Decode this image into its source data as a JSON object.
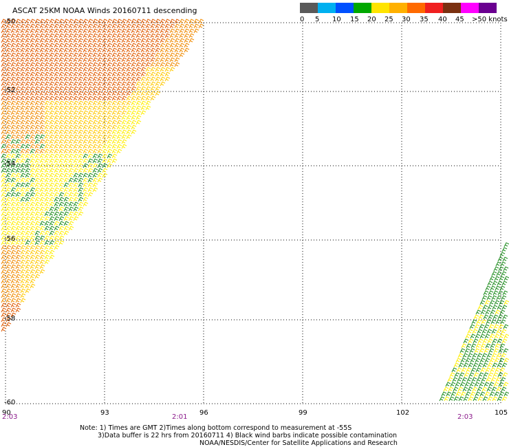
{
  "title": "ASCAT 25KM NOAA Winds 20160711 descending",
  "colorbar": {
    "colors": [
      "#5a5a5a",
      "#00b0f0",
      "#0050ff",
      "#00a800",
      "#ffe400",
      "#ffb000",
      "#ff6a00",
      "#f02020",
      "#7a3010",
      "#ff00ff",
      "#6a0090"
    ],
    "labels": [
      "0",
      "5",
      "10",
      "15",
      "20",
      "25",
      "30",
      "35",
      "40",
      "45",
      ">50 knots"
    ]
  },
  "map": {
    "lat_labels": [
      "-50",
      "-52",
      "-54",
      "-56",
      "-58",
      "-60"
    ],
    "lon_labels": [
      "90",
      "93",
      "96",
      "99",
      "102",
      "105"
    ],
    "time_labels": [
      "2:03",
      "2:01",
      "2:03"
    ],
    "swath_colors": {
      "orange_red": "#e05a00",
      "orange": "#f08a00",
      "gold": "#ffc800",
      "yellow": "#ffee00",
      "green": "#1e8c1e"
    }
  },
  "notes": [
    "Note: 1) Times are GMT 2)Times along bottom correspond to measurement at -55S",
    "3)Data buffer is 22 hrs from 20160711 4) Black wind barbs indicate possible contamination",
    "NOAA/NESDIS/Center for Satellite Applications and Research"
  ]
}
